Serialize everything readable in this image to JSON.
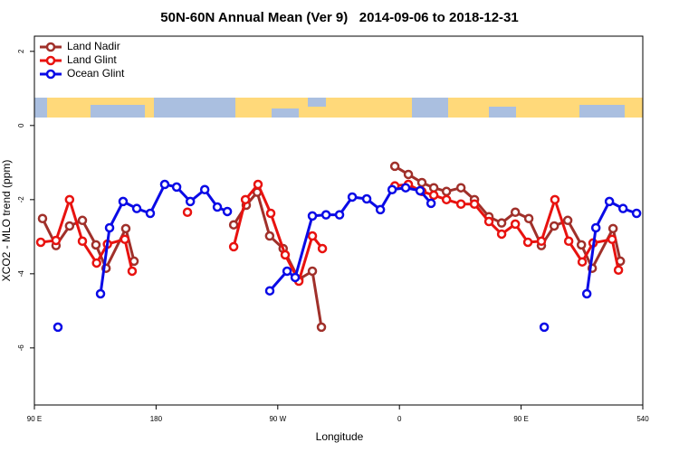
{
  "chart_data": {
    "type": "line",
    "title": "50N-60N Annual Mean (Ver 9)   2014-09-06 to 2018-12-31",
    "xlabel": "Longitude",
    "ylabel": "XCO2 - MLO trend (ppm)",
    "xlim": [
      90,
      540
    ],
    "ylim": [
      -7.54,
      2.41
    ],
    "xticks": [
      {
        "value": 90,
        "label": "90 E"
      },
      180,
      {
        "value": 270,
        "label": "90 W"
      },
      {
        "value": 360,
        "label": "0"
      },
      {
        "value": 450,
        "label": "90 E"
      },
      540
    ],
    "yticks": [
      2,
      0,
      -2,
      -4,
      -6
    ],
    "legend": "top-left",
    "series": [
      {
        "name": "Land Nadir",
        "color": "#a0302a",
        "x": [
          96,
          106,
          116,
          125.5,
          135.5,
          143,
          157.6,
          163.7,
          null,
          237.4,
          246.7,
          254.8,
          264,
          274,
          285.6,
          295.6,
          302.3,
          null,
          356.6,
          366.6,
          376.6,
          385.4,
          394.8,
          405.5,
          415.5,
          426.2,
          435.6,
          445.7,
          455.7,
          465,
          474.5,
          484.5,
          494.6,
          502.6,
          518,
          523.4
        ],
        "values": [
          -2.51,
          -3.24,
          -2.71,
          -2.56,
          -3.22,
          -3.85,
          -2.78,
          -3.66,
          null,
          -2.68,
          -2.15,
          -1.8,
          -2.98,
          -3.32,
          -4.15,
          -3.93,
          -5.44,
          null,
          -1.1,
          -1.32,
          -1.54,
          -1.68,
          -1.78,
          -1.68,
          -2.0,
          -2.46,
          -2.63,
          -2.34,
          -2.51,
          -3.24,
          -2.71,
          -2.56,
          -3.22,
          -3.85,
          -2.78,
          -3.66
        ]
      },
      {
        "name": "Land Glint",
        "color": "#e8120f",
        "x": [
          94.7,
          106,
          116,
          125.5,
          136,
          144,
          156.9,
          162.3,
          null,
          203.2,
          null,
          237.4,
          246.1,
          255.4,
          264.8,
          275.5,
          285.6,
          295.6,
          303,
          null,
          356.6,
          366.6,
          376.6,
          385.4,
          394.8,
          405.5,
          415.5,
          426.2,
          435.6,
          445.7,
          455,
          465,
          475,
          485.2,
          495.2,
          503.2,
          517.3,
          522
        ],
        "values": [
          -3.15,
          -3.1,
          -2.0,
          -3.12,
          -3.71,
          -3.2,
          -3.07,
          -3.93,
          null,
          -2.34,
          null,
          -3.27,
          -2.0,
          -1.59,
          -2.37,
          -3.49,
          -4.2,
          -2.98,
          -3.32,
          null,
          -1.63,
          -1.59,
          -1.78,
          -1.88,
          -2.0,
          -2.12,
          -2.12,
          -2.59,
          -2.93,
          -2.66,
          -3.15,
          -3.12,
          -2.0,
          -3.12,
          -3.68,
          -3.17,
          -3.07,
          -3.9
        ]
      },
      {
        "name": "Ocean Glint",
        "color": "#0a0ae6",
        "x": [
          107.4,
          null,
          138.9,
          145.6,
          155.6,
          165.7,
          175.7,
          186.4,
          195.2,
          205.3,
          216,
          225.3,
          232.7,
          null,
          264.1,
          276.9,
          282.9,
          295.6,
          305.7,
          315.7,
          325.1,
          335.8,
          345.9,
          354.6,
          364.6,
          375.3,
          383.4,
          null,
          467.1,
          null,
          498.6,
          505.3,
          515.3,
          525.4,
          535.4
        ],
        "values": [
          -5.44,
          null,
          -4.54,
          -2.76,
          -2.05,
          -2.24,
          -2.37,
          -1.59,
          -1.66,
          -2.05,
          -1.73,
          -2.2,
          -2.32,
          null,
          -4.46,
          -3.93,
          -4.1,
          -2.44,
          -2.41,
          -2.41,
          -1.93,
          -1.98,
          -2.27,
          -1.73,
          -1.68,
          -1.76,
          -2.1,
          null,
          -5.44,
          null,
          -4.54,
          -2.76,
          -2.05,
          -2.24,
          -2.37
        ]
      }
    ]
  }
}
